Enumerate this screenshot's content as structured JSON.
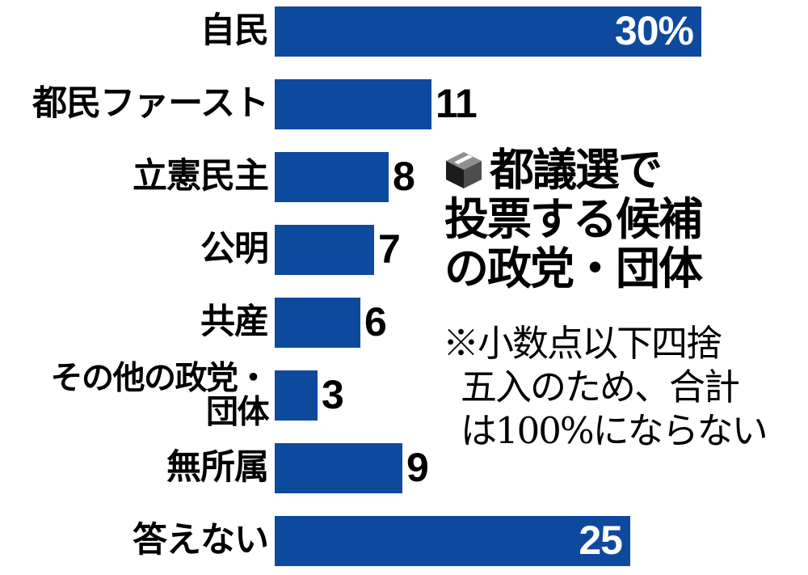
{
  "chart_data": {
    "type": "bar",
    "orientation": "horizontal",
    "title": "都議選で投票する候補の政党・団体",
    "title_lines": [
      "都議選で",
      "投票する候補",
      "の政党・団体"
    ],
    "title_icon": "ballot-box-icon",
    "note": "※小数点以下四捨五入のため、合計は100%にならない",
    "note_lines": [
      "※小数点以下四捨",
      "五入のため、合計",
      "は100%にならない"
    ],
    "unit": "%",
    "xlim": [
      0,
      30
    ],
    "grid": false,
    "legend": "none",
    "bar_color": "#0d4a9e",
    "background_color": "#ffffff",
    "inside_value_color": "#ffffff",
    "outside_value_color": "#000000",
    "categories": [
      "自民",
      "都民ファースト",
      "立憲民主",
      "公明",
      "共産",
      "その他の政党・団体",
      "無所属",
      "答えない"
    ],
    "values": [
      30,
      11,
      8,
      7,
      6,
      3,
      9,
      25
    ],
    "rows": [
      {
        "label_lines": [
          "自民"
        ],
        "value": 30,
        "value_label": "30%",
        "inside": true
      },
      {
        "label_lines": [
          "都民ファースト"
        ],
        "value": 11,
        "value_label": "11",
        "inside": false
      },
      {
        "label_lines": [
          "立憲民主"
        ],
        "value": 8,
        "value_label": "8",
        "inside": false
      },
      {
        "label_lines": [
          "公明"
        ],
        "value": 7,
        "value_label": "7",
        "inside": false
      },
      {
        "label_lines": [
          "共産"
        ],
        "value": 6,
        "value_label": "6",
        "inside": false
      },
      {
        "label_lines": [
          "その他の政党・",
          "団体"
        ],
        "value": 3,
        "value_label": "3",
        "inside": false
      },
      {
        "label_lines": [
          "無所属"
        ],
        "value": 9,
        "value_label": "9",
        "inside": false
      },
      {
        "label_lines": [
          "答えない"
        ],
        "value": 25,
        "value_label": "25",
        "inside": true
      }
    ]
  }
}
